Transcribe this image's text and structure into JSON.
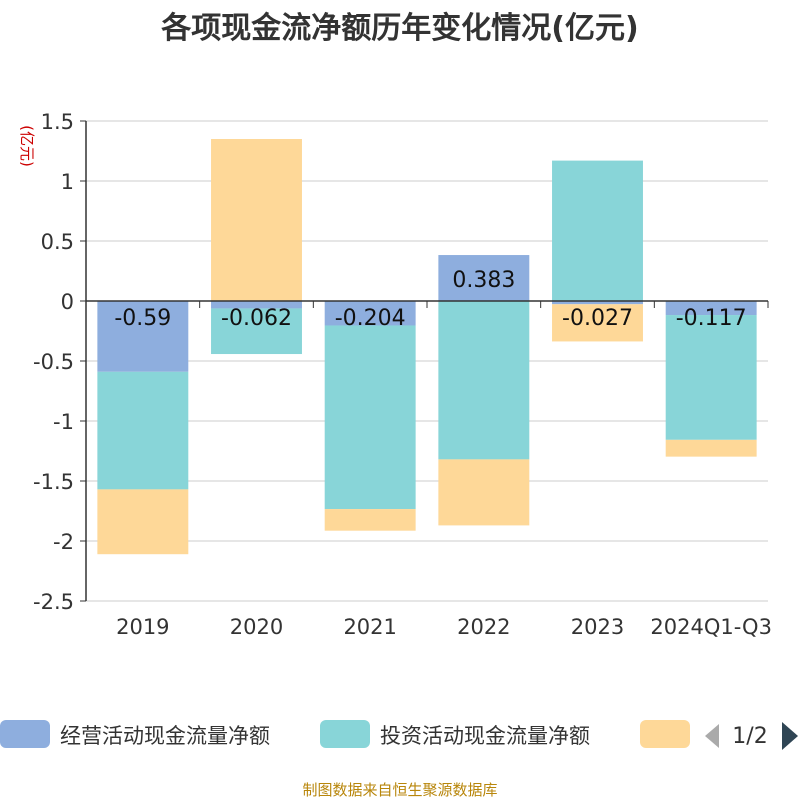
{
  "chart_data": {
    "type": "bar",
    "stacked": true,
    "title": "各项现金流净额历年变化情况(亿元)",
    "unit_label": "(亿元)",
    "categories": [
      "2019",
      "2020",
      "2021",
      "2022",
      "2023",
      "2024Q1-Q3"
    ],
    "ylim": [
      -2.5,
      1.5
    ],
    "yticks": [
      1.5,
      1,
      0.5,
      0,
      -0.5,
      -1,
      -1.5,
      -2,
      -2.5
    ],
    "ytick_labels": [
      "1.5",
      "1",
      "0.5",
      "0",
      "-0.5",
      "-1",
      "-1.5",
      "-2",
      "-2.5"
    ],
    "grid": true,
    "legend_position": "bottom",
    "series": [
      {
        "name": "经营活动现金流量净额",
        "color": "#8eaede",
        "values": [
          -0.59,
          -0.062,
          -0.204,
          0.383,
          -0.027,
          -0.117
        ],
        "labels": [
          "-0.59",
          "-0.062",
          "-0.204",
          "0.383",
          "-0.027",
          "-0.117"
        ]
      },
      {
        "name": "投资活动现金流量净额",
        "color": "#88d5d8",
        "values": [
          -0.98,
          -0.38,
          -1.53,
          -1.32,
          1.17,
          -1.04
        ],
        "labels": [
          "",
          "",
          "",
          "",
          "",
          ""
        ]
      },
      {
        "name": "",
        "color": "#fed898",
        "values": [
          -0.54,
          1.35,
          -0.18,
          -0.55,
          -0.31,
          -0.14
        ],
        "labels": [
          "",
          "",
          "",
          "",
          "",
          ""
        ]
      }
    ]
  },
  "legend": {
    "page": "1/2"
  },
  "footer": {
    "source": "制图数据来自恒生聚源数据库"
  }
}
